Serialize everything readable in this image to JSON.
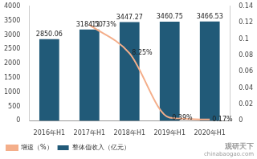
{
  "chart_data": {
    "type": "bar",
    "categories": [
      "2016年H1",
      "2017年H1",
      "2018年H1",
      "2019年H1",
      "2020年H1"
    ],
    "series": [
      {
        "name": "整体值收入（亿元）",
        "type": "bar",
        "color": "#215a78",
        "values": [
          2850.06,
          3184.5,
          3447.27,
          3460.75,
          3466.53
        ],
        "value_labels": [
          "2850.06",
          "3184.50",
          "3447.27",
          "3460.75",
          "3466.53"
        ]
      },
      {
        "name": "增速（%）",
        "type": "line",
        "color": "#f4ae8a",
        "axis": "y2",
        "marker": "none",
        "values": [
          null,
          0.1173,
          0.0825,
          0.0039,
          0.0017
        ],
        "value_labels": [
          null,
          "11.73%",
          "8.25%",
          "0.39%",
          "0.17%"
        ]
      }
    ],
    "ylim": [
      0,
      4000
    ],
    "yticks": [
      0,
      500,
      1000,
      1500,
      2000,
      2500,
      3000,
      3500,
      4000
    ],
    "y2lim": [
      0,
      0.14
    ],
    "y2ticks": [
      0,
      0.02,
      0.04,
      0.06,
      0.08,
      0.1,
      0.12,
      0.14
    ],
    "grid": false,
    "legend": "bottom",
    "data_labels": true,
    "annotations": [
      "观研天下",
      "chinabaogao.com"
    ]
  }
}
